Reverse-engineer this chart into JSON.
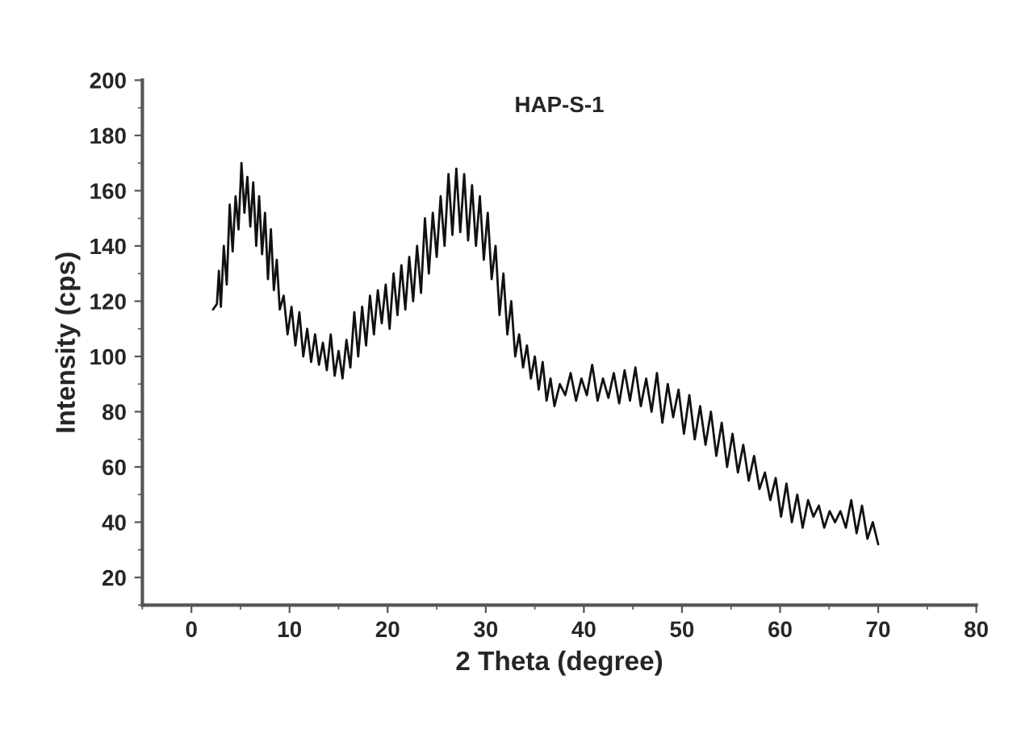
{
  "chart_data": {
    "type": "line",
    "title": "HAP-S-1",
    "xlabel": "2 Theta (degree)",
    "ylabel": "Intensity (cps)",
    "xlim": [
      -5,
      80
    ],
    "xticks": [
      0,
      10,
      20,
      30,
      40,
      50,
      60,
      70,
      80
    ],
    "ylim": [
      10,
      200
    ],
    "yticks": [
      20,
      40,
      60,
      80,
      100,
      120,
      140,
      160,
      180,
      200
    ],
    "grid": false,
    "legend": false,
    "marker": "none",
    "line_style": "solid",
    "series": [
      {
        "color": "#111111",
        "x": [
          2.2,
          2.6,
          2.8,
          3.0,
          3.3,
          3.6,
          3.9,
          4.2,
          4.5,
          4.8,
          5.1,
          5.4,
          5.7,
          6.0,
          6.3,
          6.6,
          6.9,
          7.2,
          7.5,
          7.8,
          8.1,
          8.4,
          8.7,
          9.0,
          9.4,
          9.8,
          10.2,
          10.6,
          11.0,
          11.4,
          11.8,
          12.2,
          12.6,
          13.0,
          13.4,
          13.8,
          14.2,
          14.6,
          15.0,
          15.4,
          15.8,
          16.2,
          16.6,
          17.0,
          17.4,
          17.8,
          18.2,
          18.6,
          19.0,
          19.4,
          19.8,
          20.2,
          20.6,
          21.0,
          21.4,
          21.8,
          22.2,
          22.6,
          23.0,
          23.4,
          23.8,
          24.2,
          24.6,
          25.0,
          25.4,
          25.8,
          26.2,
          26.6,
          27.0,
          27.4,
          27.8,
          28.2,
          28.6,
          29.0,
          29.4,
          29.8,
          30.2,
          30.6,
          31.0,
          31.4,
          31.8,
          32.2,
          32.6,
          33.0,
          33.4,
          33.8,
          34.2,
          34.6,
          35.0,
          35.4,
          35.8,
          36.2,
          36.6,
          37.0,
          37.55,
          38.1,
          38.65,
          39.2,
          39.75,
          40.3,
          40.85,
          41.4,
          41.95,
          42.5,
          43.05,
          43.6,
          44.15,
          44.7,
          45.25,
          45.8,
          46.35,
          46.9,
          47.45,
          48.0,
          48.55,
          49.1,
          49.65,
          50.2,
          50.75,
          51.3,
          51.85,
          52.4,
          52.95,
          53.5,
          54.05,
          54.6,
          55.15,
          55.7,
          56.25,
          56.8,
          57.35,
          57.9,
          58.45,
          59.0,
          59.55,
          60.1,
          60.65,
          61.2,
          61.75,
          62.3,
          62.85,
          63.4,
          63.95,
          64.5,
          65.05,
          65.6,
          66.15,
          66.7,
          67.25,
          67.8,
          68.35,
          68.9,
          69.45,
          70.0
        ],
        "values": [
          117,
          119,
          131,
          118,
          140,
          126,
          155,
          138,
          158,
          146,
          170,
          152,
          165,
          147,
          163,
          140,
          158,
          137,
          152,
          128,
          146,
          124,
          135,
          117,
          122,
          108,
          118,
          104,
          116,
          100,
          110,
          98,
          108,
          97,
          105,
          95,
          108,
          93,
          102,
          92,
          106,
          96,
          116,
          100,
          118,
          104,
          122,
          108,
          124,
          112,
          126,
          110,
          130,
          115,
          133,
          117,
          136,
          120,
          140,
          123,
          150,
          130,
          152,
          136,
          158,
          140,
          166,
          144,
          168,
          145,
          166,
          142,
          162,
          140,
          158,
          135,
          152,
          128,
          140,
          115,
          130,
          108,
          120,
          100,
          108,
          96,
          104,
          92,
          100,
          88,
          98,
          84,
          92,
          82,
          90,
          86,
          94,
          84,
          92,
          86,
          97,
          84,
          92,
          85,
          94,
          83,
          95,
          84,
          96,
          82,
          92,
          80,
          94,
          76,
          90,
          78,
          88,
          72,
          86,
          70,
          82,
          68,
          80,
          64,
          76,
          60,
          72,
          58,
          68,
          55,
          64,
          52,
          58,
          48,
          56,
          42,
          54,
          40,
          50,
          38,
          48,
          42,
          46,
          38,
          44,
          40,
          44,
          38,
          48,
          36,
          46,
          34,
          40,
          32
        ]
      }
    ]
  }
}
